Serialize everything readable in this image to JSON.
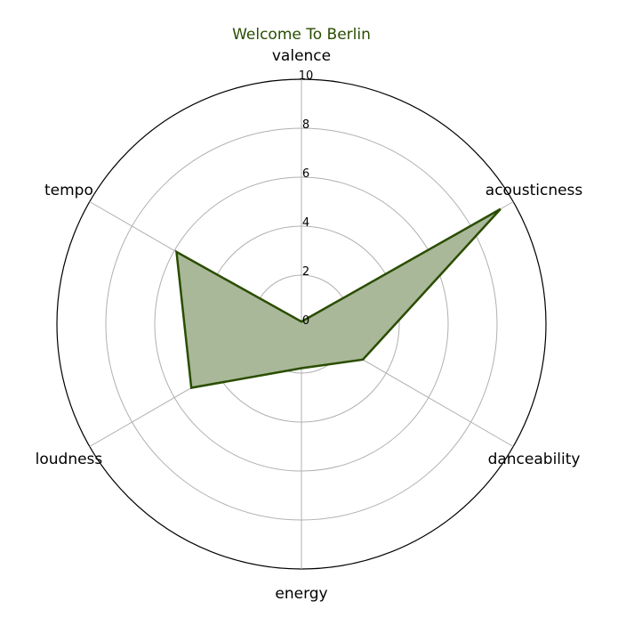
{
  "chart_data": {
    "type": "radar",
    "title": "Welcome To Berlin",
    "axes": [
      "valence",
      "acousticness",
      "danceability",
      "energy",
      "loudness",
      "tempo"
    ],
    "rlim": [
      0,
      10
    ],
    "rticks": [
      0,
      2,
      4,
      6,
      8,
      10
    ],
    "grid": true,
    "series": [
      {
        "values": [
          0.1,
          9.4,
          2.9,
          1.8,
          5.2,
          5.9
        ]
      }
    ],
    "colors": {
      "line": "#2a4d00",
      "fill": "#a9b899",
      "title": "#2a4d00",
      "grid": "#b0b0b0",
      "outline": "#000000"
    }
  }
}
